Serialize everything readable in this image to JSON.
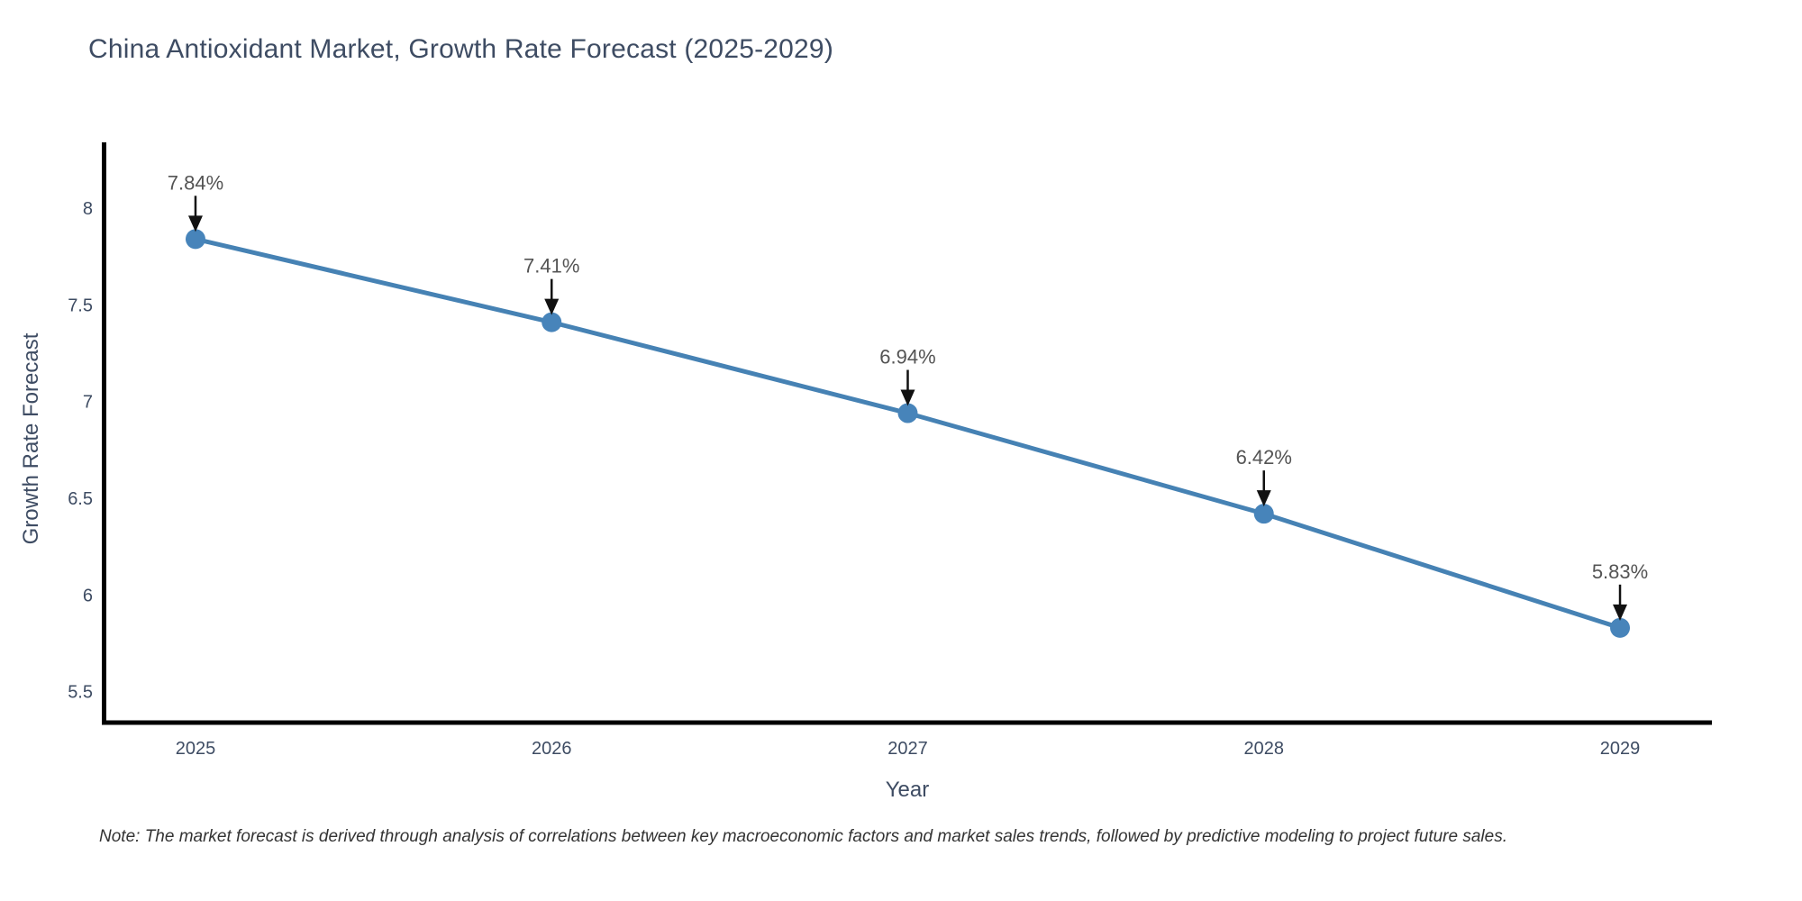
{
  "title": "China Antioxidant Market, Growth Rate Forecast (2025-2029)",
  "note": "Note: The market forecast is derived through analysis of correlations between key macroeconomic factors and market sales trends, followed by predictive modeling to project future sales.",
  "chart_data": {
    "type": "line",
    "title": "China Antioxidant Market, Growth Rate Forecast (2025-2029)",
    "xlabel": "Year",
    "ylabel": "Growth Rate Forecast",
    "x": [
      2025,
      2026,
      2027,
      2028,
      2029
    ],
    "y": [
      7.84,
      7.41,
      6.94,
      6.42,
      5.83
    ],
    "point_labels": [
      "7.84%",
      "7.41%",
      "6.94%",
      "6.42%",
      "5.83%"
    ],
    "xtick_labels": [
      "2025",
      "2026",
      "2027",
      "2028",
      "2029"
    ],
    "yticks": [
      5.5,
      6,
      6.5,
      7,
      7.5,
      8
    ],
    "ytick_labels": [
      "5.5",
      "6",
      "6.5",
      "7",
      "7.5",
      "8"
    ],
    "xlim": [
      2024.742,
      2029.258
    ],
    "ylim": [
      5.34,
      8.34
    ],
    "grid": false,
    "legend": "none",
    "annotations_have_arrows": true,
    "line_color": "#4682b4",
    "marker_color": "#4784ba",
    "arrow_color": "#111111",
    "annotation_color": "#545454",
    "axis_color": "#000000",
    "tick_label_color": "#3e4c63"
  }
}
